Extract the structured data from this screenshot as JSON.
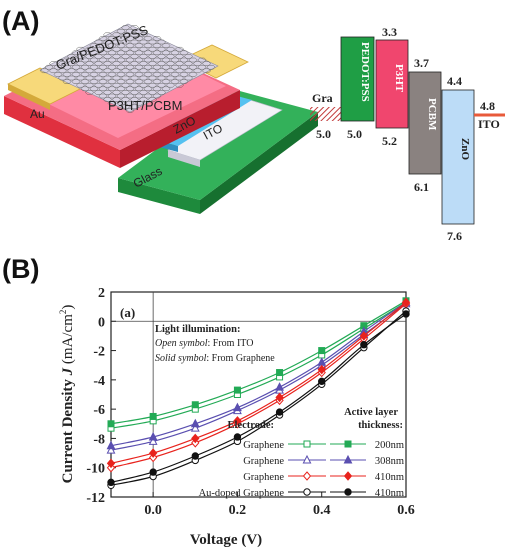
{
  "panel_a": {
    "label": "(A)",
    "device": {
      "gra_pedot": "Gra/PEDOT:PSS",
      "p3ht_pcbm": "P3HT/PCBM",
      "au": "Au",
      "zno": "ZnO",
      "ito": "ITO",
      "glass": "Glass"
    },
    "energy": {
      "gra_label": "Gra",
      "gra_value": "5.0",
      "pedot_label": "PEDOT:PSS",
      "pedot_bottom": "5.0",
      "p3ht_label": "P3HT",
      "p3ht_top": "3.3",
      "p3ht_bottom": "5.2",
      "pcbm_label": "PCBM",
      "pcbm_top": "3.7",
      "pcbm_bottom": "6.1",
      "zno_label": "ZnO",
      "zno_top": "4.4",
      "zno_bottom": "7.6",
      "ito_label": "ITO",
      "ito_value": "4.8"
    }
  },
  "panel_b": {
    "label": "(B)",
    "subplot_tag": "(a)",
    "illum_title": "Light illumination:",
    "open_symbol_key": "Open symbol",
    "open_symbol_text": ": From ITO",
    "solid_symbol_key": "Solid symbol",
    "solid_symbol_text": ": From Graphene",
    "legend_active_header_1": "Active layer",
    "legend_active_header_2": "thickness:",
    "legend_electrode_header": "Electrode:",
    "ylabel_main": "Current Density ",
    "ylabel_italic": "J",
    "ylabel_unit": " (mA/cm",
    "ylabel_exp": "2",
    "ylabel_close": ")",
    "xlabel": "Voltage (V)"
  },
  "chart_data": {
    "type": "line",
    "xlabel": "Voltage (V)",
    "ylabel": "Current Density J (mA/cm2)",
    "xlim": [
      -0.1,
      0.6
    ],
    "ylim": [
      -12,
      2
    ],
    "xticks": [
      "0.0",
      "0.2",
      "0.4",
      "0.6"
    ],
    "xtick_values": [
      0.0,
      0.2,
      0.4,
      0.6
    ],
    "yticks": [
      "2",
      "0",
      "-2",
      "-4",
      "-6",
      "-8",
      "-10",
      "-12"
    ],
    "ytick_values": [
      2,
      0,
      -2,
      -4,
      -6,
      -8,
      -10,
      -12
    ],
    "series": [
      {
        "name": "200nm",
        "electrode": "Graphene",
        "color": "#22aa55",
        "marker": "square",
        "fill": "open",
        "x": [
          -0.1,
          0.0,
          0.1,
          0.2,
          0.3,
          0.4,
          0.5,
          0.6
        ],
        "y": [
          -7.3,
          -6.8,
          -6.0,
          -5.0,
          -3.8,
          -2.3,
          -0.5,
          1.3
        ]
      },
      {
        "name": "200nm",
        "electrode": "Graphene",
        "color": "#22aa55",
        "marker": "square",
        "fill": "solid",
        "x": [
          -0.1,
          0.0,
          0.1,
          0.2,
          0.3,
          0.4,
          0.5,
          0.6
        ],
        "y": [
          -7.0,
          -6.5,
          -5.7,
          -4.7,
          -3.5,
          -2.0,
          -0.3,
          1.4
        ]
      },
      {
        "name": "308nm",
        "electrode": "Graphene",
        "color": "#5a4fb0",
        "marker": "triangle",
        "fill": "open",
        "x": [
          -0.1,
          0.0,
          0.1,
          0.2,
          0.3,
          0.4,
          0.5,
          0.6
        ],
        "y": [
          -8.8,
          -8.2,
          -7.3,
          -6.1,
          -4.7,
          -3.0,
          -0.9,
          1.2
        ]
      },
      {
        "name": "308nm",
        "electrode": "Graphene",
        "color": "#5a4fb0",
        "marker": "triangle",
        "fill": "solid",
        "x": [
          -0.1,
          0.0,
          0.1,
          0.2,
          0.3,
          0.4,
          0.5,
          0.6
        ],
        "y": [
          -8.5,
          -7.9,
          -7.0,
          -5.9,
          -4.5,
          -2.8,
          -0.7,
          1.3
        ]
      },
      {
        "name": "410nm",
        "electrode": "Graphene",
        "color": "#e8231d",
        "marker": "diamond",
        "fill": "open",
        "x": [
          -0.1,
          0.0,
          0.1,
          0.2,
          0.3,
          0.4,
          0.5,
          0.6
        ],
        "y": [
          -10.0,
          -9.3,
          -8.3,
          -7.0,
          -5.4,
          -3.5,
          -1.2,
          1.2
        ]
      },
      {
        "name": "410nm",
        "electrode": "Graphene",
        "color": "#e8231d",
        "marker": "diamond",
        "fill": "solid",
        "x": [
          -0.1,
          0.0,
          0.1,
          0.2,
          0.3,
          0.4,
          0.5,
          0.6
        ],
        "y": [
          -9.7,
          -9.0,
          -8.0,
          -6.8,
          -5.2,
          -3.3,
          -1.0,
          1.3
        ]
      },
      {
        "name": "410nm",
        "electrode": "Au-doped Graphene",
        "color": "#111111",
        "marker": "circle",
        "fill": "open",
        "x": [
          -0.1,
          0.0,
          0.1,
          0.2,
          0.3,
          0.4,
          0.5,
          0.6
        ],
        "y": [
          -11.2,
          -10.6,
          -9.5,
          -8.2,
          -6.4,
          -4.3,
          -1.8,
          0.7
        ]
      },
      {
        "name": "410nm",
        "electrode": "Au-doped Graphene",
        "color": "#111111",
        "marker": "circle",
        "fill": "solid",
        "x": [
          -0.1,
          0.0,
          0.1,
          0.2,
          0.3,
          0.4,
          0.5,
          0.6
        ],
        "y": [
          -11.0,
          -10.3,
          -9.2,
          -7.9,
          -6.2,
          -4.1,
          -1.6,
          0.5
        ]
      }
    ],
    "legend_rows": [
      {
        "electrode": "Graphene",
        "thickness": "200nm",
        "color": "#22aa55",
        "marker": "square"
      },
      {
        "electrode": "Graphene",
        "thickness": "308nm",
        "color": "#5a4fb0",
        "marker": "triangle"
      },
      {
        "electrode": "Graphene",
        "thickness": "410nm",
        "color": "#e8231d",
        "marker": "diamond"
      },
      {
        "electrode": "Au-doped Graphene",
        "thickness": "410nm",
        "color": "#111111",
        "marker": "circle"
      }
    ]
  }
}
